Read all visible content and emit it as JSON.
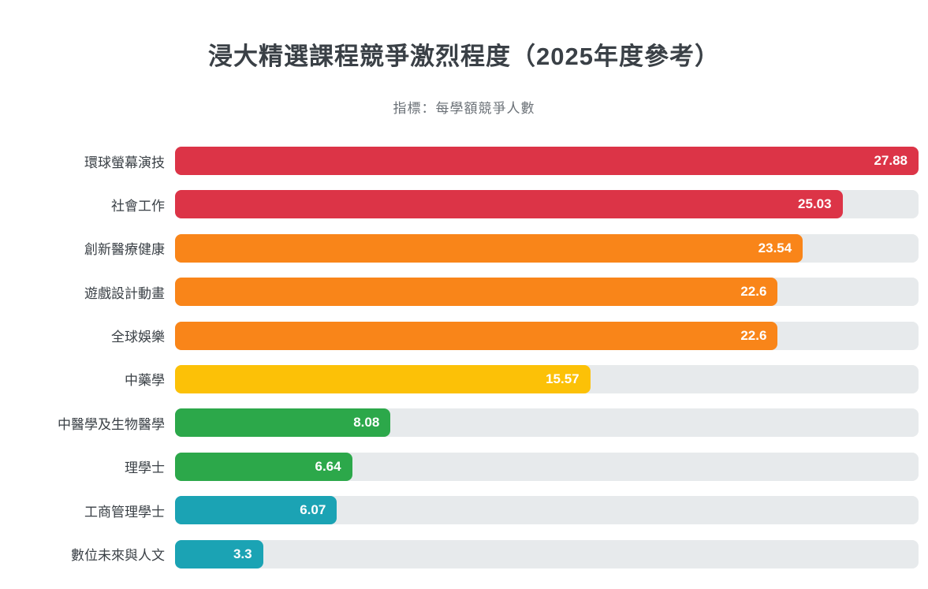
{
  "title": "浸大精選課程競爭激烈程度（2025年度參考）",
  "subtitle": "指標：每學額競爭人數",
  "colors": {
    "background": "#ffffff",
    "track": "#e7eaec",
    "title_text": "#3a4046",
    "subtitle_text": "#6b7177",
    "label_text": "#3a4046",
    "value_text": "#ffffff",
    "red": "#dc3447",
    "orange": "#f98519",
    "yellow": "#fcc107",
    "green": "#2ca84a",
    "teal": "#1ba3b4"
  },
  "chart_data": {
    "type": "bar",
    "orientation": "horizontal",
    "title": "浸大精選課程競爭激烈程度（2025年度參考）",
    "subtitle": "指標：每學額競爭人數",
    "xlabel": "",
    "ylabel": "",
    "xlim": [
      0,
      27.88
    ],
    "grid": false,
    "legend": false,
    "categories": [
      "環球螢幕演技",
      "社會工作",
      "創新醫療健康",
      "遊戲設計動畫",
      "全球娛樂",
      "中藥學",
      "中醫學及生物醫學",
      "理學士",
      "工商管理學士",
      "數位未來與人文"
    ],
    "values": [
      27.88,
      25.03,
      23.54,
      22.6,
      22.6,
      15.57,
      8.08,
      6.64,
      6.07,
      3.3
    ],
    "value_labels": [
      "27.88",
      "25.03",
      "23.54",
      "22.6",
      "22.6",
      "15.57",
      "8.08",
      "6.64",
      "6.07",
      "3.3"
    ],
    "bar_colors": [
      "#dc3447",
      "#dc3447",
      "#f98519",
      "#f98519",
      "#f98519",
      "#fcc107",
      "#2ca84a",
      "#2ca84a",
      "#1ba3b4",
      "#1ba3b4"
    ]
  }
}
